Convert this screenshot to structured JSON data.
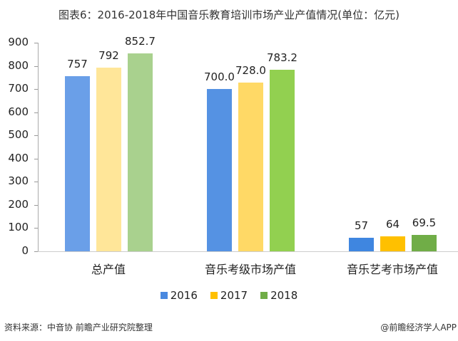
{
  "title": "图表6：2016-2018年中国音乐教育培训市场产业产值情况(单位：亿元)",
  "chart_data": {
    "type": "bar",
    "title": "图表6：2016-2018年中国音乐教育培训市场产业产值情况(单位：亿元)",
    "categories": [
      "总产值",
      "音乐考级市场产值",
      "音乐艺考市场产值"
    ],
    "series": [
      {
        "name": "2016",
        "values": [
          757,
          700.0,
          57
        ],
        "labels": [
          "757",
          "700.0",
          "57"
        ],
        "color": "#4a89e0"
      },
      {
        "name": "2017",
        "values": [
          792,
          728.0,
          64
        ],
        "labels": [
          "792",
          "728.0",
          "64"
        ],
        "color": "#ffc000"
      },
      {
        "name": "2018",
        "values": [
          852.7,
          783.2,
          69.5
        ],
        "labels": [
          "852.7",
          "783.2",
          "69.5"
        ],
        "color": "#70ad47"
      }
    ],
    "group_colors": [
      [
        "#6a9fe8",
        "#ffe699",
        "#a9d18e"
      ],
      [
        "#5592e3",
        "#ffd966",
        "#92d050"
      ],
      [
        "#3f86e0",
        "#ffc000",
        "#70ad47"
      ]
    ],
    "xlabel": "",
    "ylabel": "",
    "ylim": [
      0,
      900
    ],
    "yticks": [
      0,
      100,
      200,
      300,
      400,
      500,
      600,
      700,
      800,
      900
    ],
    "grid": false,
    "legend_position": "bottom"
  },
  "legend": [
    {
      "label": "2016",
      "color": "#4a89e0"
    },
    {
      "label": "2017",
      "color": "#ffc000"
    },
    {
      "label": "2018",
      "color": "#70ad47"
    }
  ],
  "footer": {
    "source": "资料来源：中音协 前瞻产业研究院整理",
    "credit": "@前瞻经济学人APP"
  }
}
